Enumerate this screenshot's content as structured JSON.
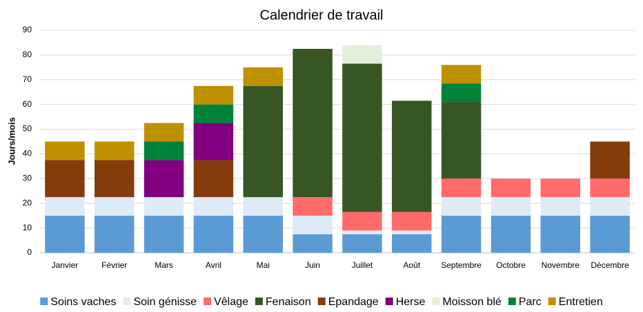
{
  "chart_data": {
    "type": "stacked-bar",
    "title": "Calendrier de travail",
    "y_label": "Jours/mois",
    "categories": [
      "Janvier",
      "Février",
      "Mars",
      "Avril",
      "Mai",
      "Juin",
      "Juillet",
      "Août",
      "Septembre",
      "Octobre",
      "Novembre",
      "Décembre"
    ],
    "series": [
      {
        "name": "Soins vaches",
        "color": "#5b9bd5",
        "values": [
          15,
          15,
          15,
          15,
          15,
          7.5,
          7.5,
          7.5,
          15,
          15,
          15,
          15
        ]
      },
      {
        "name": "Soin génisse",
        "color": "#deebf7",
        "values": [
          7.5,
          7.5,
          7.5,
          7.5,
          7.5,
          7.5,
          1.5,
          1.5,
          7.5,
          7.5,
          7.5,
          7.5
        ]
      },
      {
        "name": "Vêlage",
        "color": "#ff6b6b",
        "values": [
          0,
          0,
          0,
          0,
          0,
          7.5,
          7.5,
          7.5,
          7.5,
          7.5,
          7.5,
          7.5
        ]
      },
      {
        "name": "Fenaison",
        "color": "#375623",
        "values": [
          0,
          0,
          0,
          0,
          45,
          60,
          60,
          45,
          31,
          0,
          0,
          0
        ]
      },
      {
        "name": "Epandage",
        "color": "#843c0c",
        "values": [
          15,
          15,
          0,
          15,
          0,
          0,
          0,
          0,
          0,
          0,
          0,
          15
        ]
      },
      {
        "name": "Herse",
        "color": "#800080",
        "values": [
          0,
          0,
          15,
          15,
          0,
          0,
          0,
          0,
          0,
          0,
          0,
          0
        ]
      },
      {
        "name": "Moisson blé",
        "color": "#e2f0d9",
        "values": [
          0,
          0,
          0,
          0,
          0,
          0,
          7.5,
          0,
          0,
          0,
          0,
          0
        ]
      },
      {
        "name": "Parc",
        "color": "#00823b",
        "values": [
          0,
          0,
          7.5,
          7.5,
          0,
          0,
          0,
          0,
          7.5,
          0,
          0,
          0
        ]
      },
      {
        "name": "Entretien",
        "color": "#bf9000",
        "values": [
          7.5,
          7.5,
          7.5,
          7.5,
          7.5,
          0,
          0,
          0,
          7.5,
          0,
          0,
          0
        ]
      }
    ],
    "ylim": [
      0,
      90
    ],
    "yticks": [
      0,
      10,
      20,
      30,
      40,
      50,
      60,
      70,
      80,
      90
    ],
    "grid": true,
    "legend": "bottom"
  }
}
